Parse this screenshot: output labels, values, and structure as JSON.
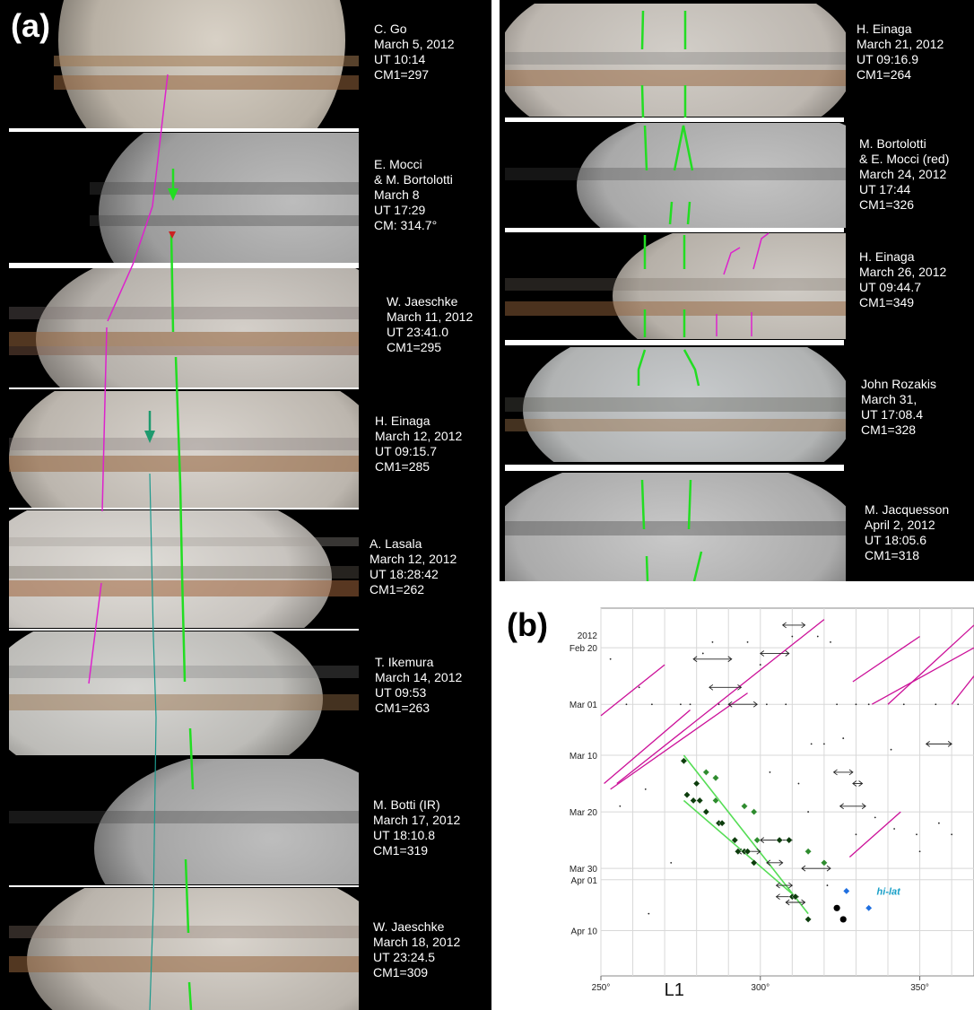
{
  "panel_a": {
    "label": "(a)",
    "captions": [
      {
        "lines": [
          "C. Go",
          "March 5, 2012",
          "UT 10:14",
          "CM1=297"
        ]
      },
      {
        "lines": [
          "E. Mocci",
          "& M. Bortolotti",
          "March 8",
          "UT 17:29",
          "CM:  314.7°"
        ]
      },
      {
        "lines": [
          "W. Jaeschke",
          "March 11, 2012",
          "UT 23:41.0",
          "CM1=295"
        ]
      },
      {
        "lines": [
          "H. Einaga",
          "March 12, 2012",
          "UT 09:15.7",
          "CM1=285"
        ]
      },
      {
        "lines": [
          "A. Lasala",
          "March 12, 2012",
          "UT 18:28:42",
          "CM1=262"
        ]
      },
      {
        "lines": [
          "T. Ikemura",
          "March 14, 2012",
          "UT 09:53",
          "CM1=263"
        ]
      },
      {
        "lines": [
          "M. Botti (IR)",
          "March 17, 2012",
          "UT 18:10.8",
          "CM1=319"
        ]
      },
      {
        "lines": [
          "W. Jaeschke",
          "March 18, 2012",
          "UT 23:24.5",
          "CM1=309"
        ]
      }
    ]
  },
  "panel_right": {
    "captions": [
      {
        "lines": [
          "H. Einaga",
          "March 21, 2012",
          "UT 09:16.9",
          "CM1=264"
        ]
      },
      {
        "lines": [
          "M. Bortolotti",
          "& E. Mocci  (red)",
          "March 24, 2012",
          "UT 17:44",
          "CM1=326"
        ]
      },
      {
        "lines": [
          "H. Einaga",
          "March 26, 2012",
          "UT 09:44.7",
          "CM1=349"
        ]
      },
      {
        "lines": [
          "John Rozakis",
          "March 31,",
          "UT 17:08.4",
          "CM1=328"
        ]
      },
      {
        "lines": [
          "M. Jacquesson",
          "April 2, 2012",
          "UT 18:05.6",
          "CM1=318"
        ]
      }
    ]
  },
  "panel_b": {
    "label": "(b)",
    "hi_lat_label": "hi-lat"
  },
  "chart_data": {
    "type": "scatter",
    "xlabel": "L1",
    "xlim": [
      250,
      367
    ],
    "x_ticks": [
      250,
      300,
      350
    ],
    "x_tick_labels": [
      "250°",
      "300°",
      "350°"
    ],
    "y_axis": "date (day of 2012, increasing downward)",
    "ylim": [
      "2012-02-13",
      "2012-04-18"
    ],
    "y_ticks": [
      "2012-02-20",
      "2012-03-01",
      "2012-03-10",
      "2012-03-20",
      "2012-03-30",
      "2012-04-01",
      "2012-04-10"
    ],
    "y_tick_labels": [
      "Feb 20",
      "Mar 01",
      "Mar 10",
      "Mar 20",
      "Mar 30",
      "Apr 01",
      "Apr 10"
    ],
    "year_label": "2012",
    "grid": true,
    "colors": {
      "dark_spot": "#0d3d0d",
      "green_spot": "#2e8b2e",
      "fit_line": "#55dd55",
      "magenta": "#cc1199",
      "blue": "#1f6fe0",
      "hi_lat_text": "#1aa0c8"
    },
    "series": [
      {
        "name": "",
        "marker": "diamond",
        "color": "#0d3d0d",
        "points": [
          [
            276,
            "2012-03-11"
          ],
          [
            280,
            "2012-03-15"
          ],
          [
            277,
            "2012-03-17"
          ],
          [
            279,
            "2012-03-18"
          ],
          [
            281,
            "2012-03-18"
          ],
          [
            283,
            "2012-03-20"
          ],
          [
            287,
            "2012-03-22"
          ],
          [
            288,
            "2012-03-22"
          ],
          [
            292,
            "2012-03-25"
          ],
          [
            293,
            "2012-03-27"
          ],
          [
            295,
            "2012-03-27"
          ],
          [
            296,
            "2012-03-27"
          ],
          [
            298,
            "2012-03-29"
          ],
          [
            306,
            "2012-03-25"
          ],
          [
            309,
            "2012-03-25"
          ],
          [
            310,
            "2012-04-04"
          ],
          [
            311,
            "2012-04-04"
          ],
          [
            315,
            "2012-04-08"
          ]
        ]
      },
      {
        "name": "",
        "marker": "diamond",
        "color": "#2e8b2e",
        "points": [
          [
            283,
            "2012-03-13"
          ],
          [
            286,
            "2012-03-14"
          ],
          [
            286,
            "2012-03-18"
          ],
          [
            295,
            "2012-03-19"
          ],
          [
            298,
            "2012-03-20"
          ],
          [
            299,
            "2012-03-25"
          ],
          [
            315,
            "2012-03-27"
          ],
          [
            320,
            "2012-03-29"
          ]
        ]
      },
      {
        "name": "",
        "marker": "circle",
        "color": "#000000",
        "points": [
          [
            324,
            "2012-04-06"
          ],
          [
            326,
            "2012-04-08"
          ]
        ]
      },
      {
        "name": "",
        "marker": "diamond",
        "color": "#1f6fe0",
        "points": [
          [
            327,
            "2012-04-03"
          ],
          [
            334,
            "2012-04-06"
          ]
        ]
      }
    ],
    "fit_lines": [
      {
        "from": [
          276,
          "2012-03-10"
        ],
        "to": [
          315,
          "2012-04-07"
        ]
      },
      {
        "from": [
          276,
          "2012-03-18"
        ],
        "to": [
          311,
          "2012-04-04"
        ]
      }
    ],
    "magenta_drift_lines": [
      {
        "from": [
          250,
          "2012-03-03"
        ],
        "to": [
          270,
          "2012-02-23"
        ]
      },
      {
        "from": [
          251,
          "2012-03-15"
        ],
        "to": [
          278,
          "2012-03-02"
        ]
      },
      {
        "from": [
          253,
          "2012-03-16"
        ],
        "to": [
          296,
          "2012-02-28"
        ]
      },
      {
        "from": [
          255,
          "2012-03-15"
        ],
        "to": [
          320,
          "2012-02-15"
        ]
      },
      {
        "from": [
          329,
          "2012-02-26"
        ],
        "to": [
          350,
          "2012-02-18"
        ]
      },
      {
        "from": [
          335,
          "2012-03-01"
        ],
        "to": [
          367,
          "2012-02-20"
        ]
      },
      {
        "from": [
          340,
          "2012-03-01"
        ],
        "to": [
          367,
          "2012-02-16"
        ]
      },
      {
        "from": [
          360,
          "2012-03-01"
        ],
        "to": [
          367,
          "2012-02-25"
        ]
      },
      {
        "from": [
          328,
          "2012-03-28"
        ],
        "to": [
          344,
          "2012-03-20"
        ]
      }
    ],
    "arrow_marks": [
      {
        "x": [
          279,
          291
        ],
        "date": "2012-02-22"
      },
      {
        "x": [
          307,
          314
        ],
        "date": "2012-02-16"
      },
      {
        "x": [
          300,
          309
        ],
        "date": "2012-02-21"
      },
      {
        "x": [
          284,
          294
        ],
        "date": "2012-02-27"
      },
      {
        "x": [
          290,
          299
        ],
        "date": "2012-03-01"
      },
      {
        "x": [
          352,
          360
        ],
        "date": "2012-03-08"
      },
      {
        "x": [
          323,
          329
        ],
        "date": "2012-03-13"
      },
      {
        "x": [
          329,
          332
        ],
        "date": "2012-03-15"
      },
      {
        "x": [
          325,
          333
        ],
        "date": "2012-03-19"
      },
      {
        "x": [
          300,
          310
        ],
        "date": "2012-03-25"
      },
      {
        "x": [
          293,
          300
        ],
        "date": "2012-03-27"
      },
      {
        "x": [
          302,
          307
        ],
        "date": "2012-03-29"
      },
      {
        "x": [
          305,
          310
        ],
        "date": "2012-04-02"
      },
      {
        "x": [
          313,
          322
        ],
        "date": "2012-03-30"
      },
      {
        "x": [
          305,
          312
        ],
        "date": "2012-04-04"
      },
      {
        "x": [
          308,
          314
        ],
        "date": "2012-04-05"
      }
    ]
  }
}
